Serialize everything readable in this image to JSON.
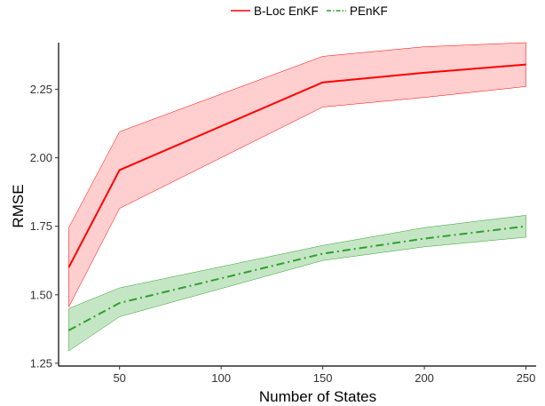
{
  "chart_data": {
    "type": "line",
    "x": [
      25,
      50,
      150,
      200,
      250
    ],
    "xlabel": "Number of States",
    "ylabel": "RMSE",
    "xlim": [
      20,
      255
    ],
    "ylim": [
      1.24,
      2.42
    ],
    "xticks": [
      50,
      100,
      150,
      200,
      250
    ],
    "xtick_labels": [
      "50",
      "100",
      "150",
      "200",
      "250"
    ],
    "yticks": [
      1.25,
      1.5,
      1.75,
      2.0,
      2.25
    ],
    "ytick_labels": [
      "1.25",
      "1.50",
      "1.75",
      "2.00",
      "2.25"
    ],
    "grid": false,
    "legend_position": "top",
    "series": [
      {
        "name": "B-Loc EnKF",
        "color": "#ff0000",
        "fill": "#ffc9c9",
        "line_style": "solid",
        "values": [
          1.6,
          1.955,
          2.275,
          2.31,
          2.34
        ],
        "lower": [
          1.455,
          1.815,
          2.185,
          2.22,
          2.26
        ],
        "upper": [
          1.745,
          2.095,
          2.37,
          2.405,
          2.42
        ]
      },
      {
        "name": "PEnKF",
        "color": "#2ca02c",
        "fill": "#bfe3bf",
        "line_style": "dashdot",
        "values": [
          1.37,
          1.47,
          1.65,
          1.705,
          1.75
        ],
        "lower": [
          1.295,
          1.42,
          1.625,
          1.675,
          1.71
        ],
        "upper": [
          1.45,
          1.525,
          1.68,
          1.745,
          1.79
        ]
      }
    ]
  }
}
